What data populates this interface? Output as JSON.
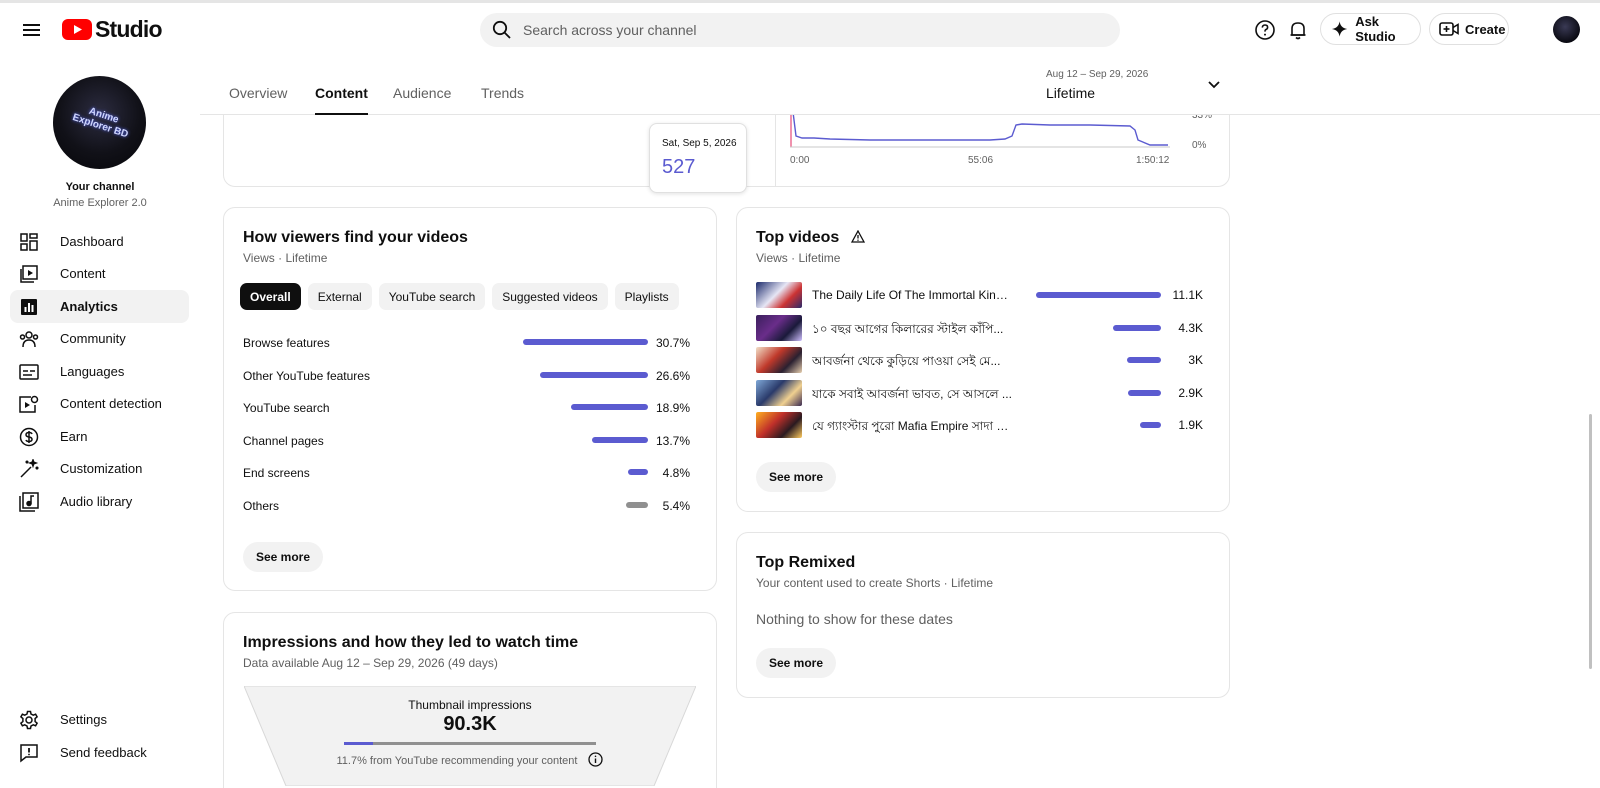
{
  "header": {
    "logo_text": "Studio",
    "search_placeholder": "Search across your channel",
    "ask_studio_label": "Ask Studio",
    "create_label": "Create"
  },
  "sidebar": {
    "channel_title": "Your channel",
    "channel_name": "Anime Explorer 2.0",
    "avatar_text": "Anime Explorer BD",
    "items": [
      {
        "label": "Dashboard",
        "icon": "dashboard-icon"
      },
      {
        "label": "Content",
        "icon": "content-icon"
      },
      {
        "label": "Analytics",
        "icon": "analytics-icon",
        "active": true
      },
      {
        "label": "Community",
        "icon": "community-icon"
      },
      {
        "label": "Languages",
        "icon": "languages-icon"
      },
      {
        "label": "Content detection",
        "icon": "content-detection-icon"
      },
      {
        "label": "Earn",
        "icon": "earn-icon"
      },
      {
        "label": "Customization",
        "icon": "customization-icon"
      },
      {
        "label": "Audio library",
        "icon": "audio-library-icon"
      }
    ],
    "bottom_items": [
      {
        "label": "Settings",
        "icon": "settings-icon"
      },
      {
        "label": "Send feedback",
        "icon": "feedback-icon"
      }
    ]
  },
  "tabs": {
    "items": [
      "Overview",
      "Content",
      "Audience",
      "Trends"
    ],
    "active": "Content"
  },
  "date_range": {
    "range": "Aug 12 – Sep 29, 2026",
    "label": "Lifetime"
  },
  "tooltip": {
    "date": "Sat, Sep 5, 2026",
    "value": "527"
  },
  "retention_chart": {
    "x_ticks": [
      "0:00",
      "55:06",
      "1:50:12"
    ],
    "y_ticks": [
      "33%",
      "0%"
    ]
  },
  "traffic_sources": {
    "title": "How viewers find your videos",
    "subtitle": "Views · Lifetime",
    "chips": [
      "Overall",
      "External",
      "YouTube search",
      "Suggested videos",
      "Playlists"
    ],
    "active_chip": "Overall",
    "rows": [
      {
        "label": "Browse features",
        "value": "30.7%",
        "pct": 30.7
      },
      {
        "label": "Other YouTube features",
        "value": "26.6%",
        "pct": 26.6
      },
      {
        "label": "YouTube search",
        "value": "18.9%",
        "pct": 18.9
      },
      {
        "label": "Channel pages",
        "value": "13.7%",
        "pct": 13.7
      },
      {
        "label": "End screens",
        "value": "4.8%",
        "pct": 4.8
      },
      {
        "label": "Others",
        "value": "5.4%",
        "pct": 5.4
      }
    ],
    "see_more": "See more"
  },
  "top_videos": {
    "title": "Top videos",
    "subtitle": "Views · Lifetime",
    "rows": [
      {
        "title": "The Daily Life Of The Immortal King S...",
        "views": "11.1K",
        "count": 11100
      },
      {
        "title": "১০ বছর আগের কিলারের স্টাইল কাঁপি...",
        "views": "4.3K",
        "count": 4300
      },
      {
        "title": "আবর্জনা থেকে কুড়িয়ে পাওয়া সেই মে...",
        "views": "3K",
        "count": 3000
      },
      {
        "title": "যাকে সবাই আবর্জনা ভাবত, সে আসলে ...",
        "views": "2.9K",
        "count": 2900
      },
      {
        "title": "যে গ্যাংস্টার পুরো Mafia Empire সাদা ক...",
        "views": "1.9K",
        "count": 1900
      }
    ],
    "see_more": "See more"
  },
  "top_remixed": {
    "title": "Top Remixed",
    "subtitle": "Your content used to create Shorts · Lifetime",
    "empty_text": "Nothing to show for these dates",
    "see_more": "See more"
  },
  "impressions": {
    "title": "Impressions and how they led to watch time",
    "subtitle": "Data available Aug 12 – Sep 29, 2026 (49 days)",
    "funnel_label": "Thumbnail impressions",
    "funnel_value": "90.3K",
    "recommended_pct": 11.7,
    "note": "11.7% from YouTube recommending your content"
  },
  "colors": {
    "accent": "#5b5bd0",
    "others_bar": "#909090",
    "logo_red": "#ff0000"
  }
}
